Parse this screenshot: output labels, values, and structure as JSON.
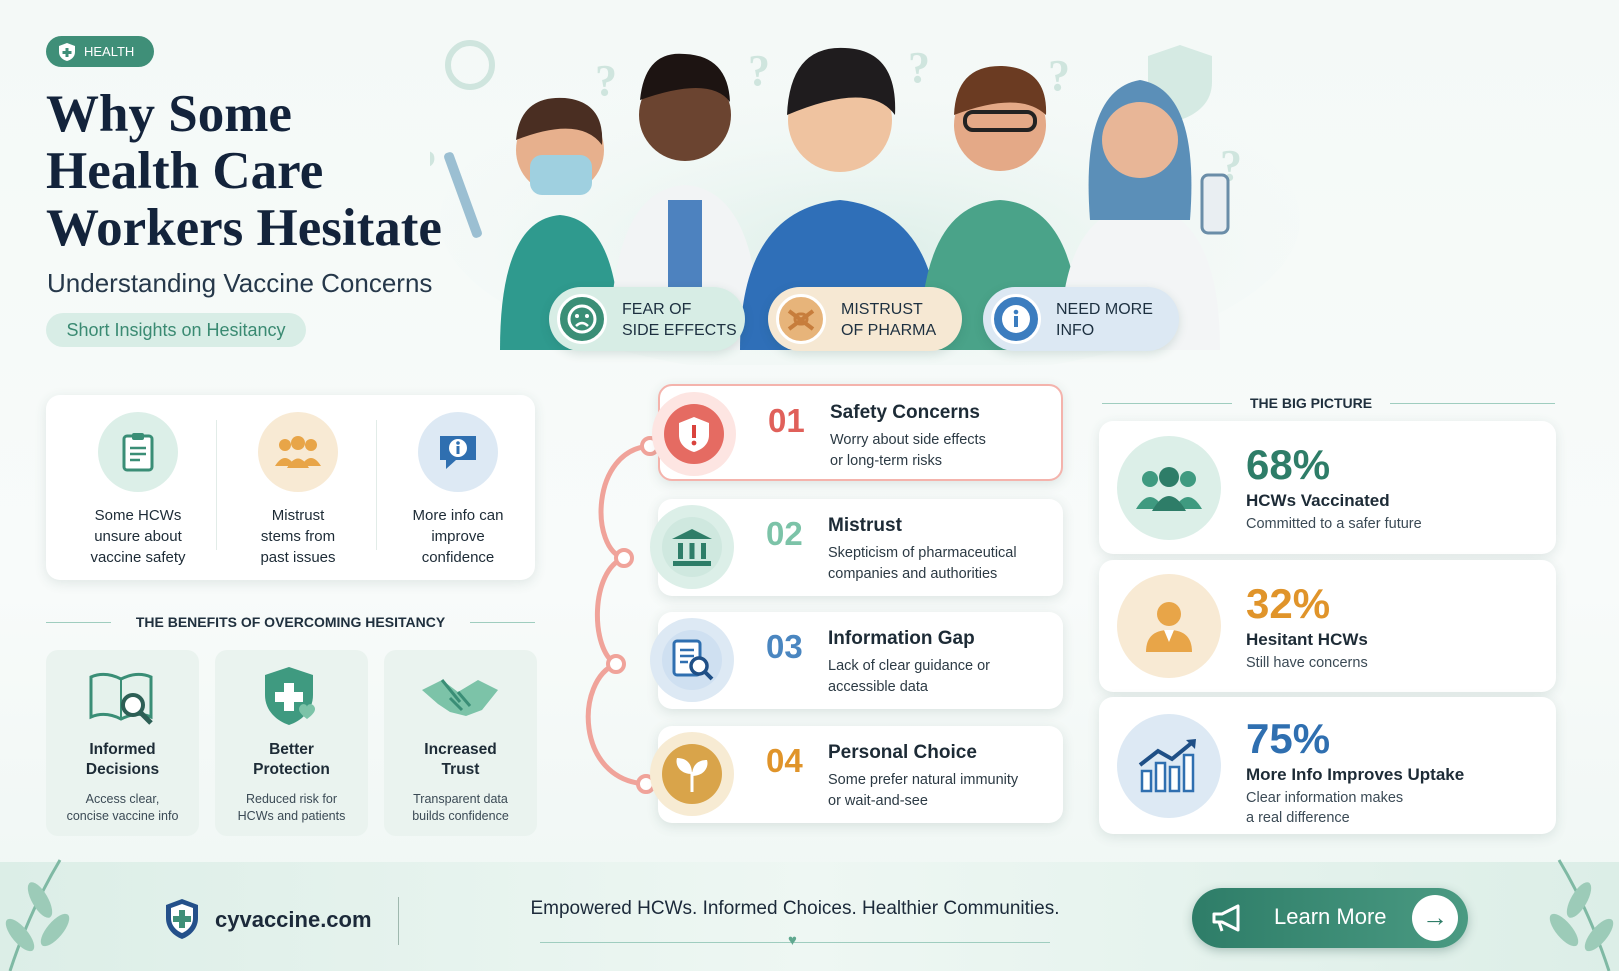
{
  "header": {
    "tag": "HEALTH",
    "title_lines": [
      "Why Some",
      "Health Care",
      "Workers Hesitate"
    ],
    "subtitle": "Understanding Vaccine Concerns",
    "pill": "Short Insights on Hesitancy"
  },
  "hero": {
    "badges": [
      {
        "lines": [
          "FEAR OF",
          "SIDE EFFECTS"
        ]
      },
      {
        "lines": [
          "MISTRUST",
          "OF PHARMA"
        ]
      },
      {
        "lines": [
          "NEED MORE",
          "INFO"
        ]
      }
    ]
  },
  "insights": [
    {
      "lines": [
        "Some HCWs",
        "unsure about",
        "vaccine safety"
      ]
    },
    {
      "lines": [
        "Mistrust",
        "stems from",
        "past issues"
      ]
    },
    {
      "lines": [
        "More info can",
        "improve",
        "confidence"
      ]
    }
  ],
  "benefits": {
    "heading": "THE BENEFITS OF OVERCOMING HESITANCY",
    "items": [
      {
        "title_lines": [
          "Informed",
          "Decisions"
        ],
        "desc_lines": [
          "Access clear,",
          "concise vaccine info"
        ]
      },
      {
        "title_lines": [
          "Better",
          "Protection"
        ],
        "desc_lines": [
          "Reduced risk for",
          "HCWs and patients"
        ]
      },
      {
        "title_lines": [
          "Increased",
          "Trust"
        ],
        "desc_lines": [
          "Transparent data",
          "builds confidence"
        ]
      }
    ]
  },
  "concerns": [
    {
      "number": "01",
      "title": "Safety Concerns",
      "desc_lines": [
        "Worry about side effects",
        "or long-term risks"
      ]
    },
    {
      "number": "02",
      "title": "Mistrust",
      "desc_lines": [
        "Skepticism of pharmaceutical",
        "companies and authorities"
      ]
    },
    {
      "number": "03",
      "title": "Information Gap",
      "desc_lines": [
        "Lack of clear guidance or",
        "accessible data"
      ]
    },
    {
      "number": "04",
      "title": "Personal Choice",
      "desc_lines": [
        "Some prefer natural immunity",
        "or wait-and-see"
      ]
    }
  ],
  "big_picture": {
    "heading": "THE BIG PICTURE",
    "stats": [
      {
        "value": "68%",
        "label": "HCWs Vaccinated",
        "desc_lines": [
          "Committed to a safer future"
        ]
      },
      {
        "value": "32%",
        "label": "Hesitant HCWs",
        "desc_lines": [
          "Still have concerns"
        ]
      },
      {
        "value": "75%",
        "label": "More Info Improves Uptake",
        "desc_lines": [
          "Clear information makes",
          "a real difference"
        ]
      }
    ]
  },
  "footer": {
    "site": "cyvaccine.com",
    "tagline": "Empowered HCWs. Informed Choices. Healthier Communities.",
    "button": "Learn More"
  }
}
